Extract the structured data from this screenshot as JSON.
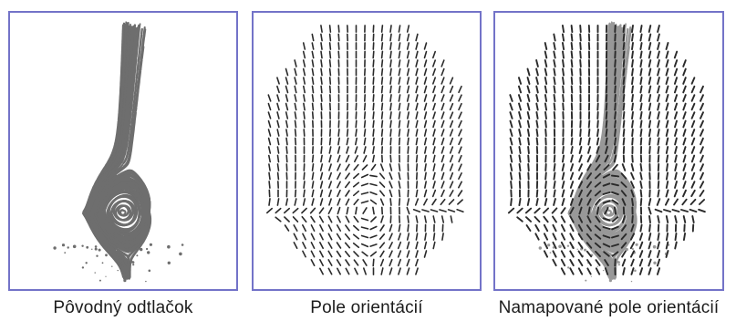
{
  "figure": {
    "panels": [
      {
        "id": "original-fingerprint",
        "caption": "Pôvodný odtlačok",
        "content": "fingerprint-ridges"
      },
      {
        "id": "orientation-field",
        "caption": "Pole orientácií",
        "content": "orientation-line-segments"
      },
      {
        "id": "mapped-orientation-field",
        "caption": "Namapované pole orientácií",
        "content": "fingerprint-with-orientation-overlay"
      }
    ]
  },
  "colors": {
    "frame": "#7373c8",
    "ridge": "#555555",
    "orientation_line": "#2a2a2a",
    "background": "#ffffff",
    "caption_text": "#1c1c1c"
  }
}
